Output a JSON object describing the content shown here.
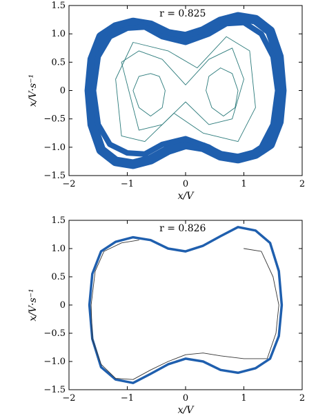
{
  "chart_data": [
    {
      "type": "line",
      "annotation": "r = 0.825",
      "xlabel": "x/V",
      "ylabel": "x/V·s⁻¹",
      "xlim": [
        -2,
        2
      ],
      "ylim": [
        -1.5,
        1.5
      ],
      "xticks": [
        "−2",
        "−1",
        "0",
        "1",
        "2"
      ],
      "yticks": [
        "1.5",
        "1.0",
        "0.5",
        "0",
        "−0.5",
        "−1.0",
        "−1.5"
      ],
      "series": [
        {
          "color": "#1f5fae",
          "x": [
            -1.65,
            -1.6,
            -1.45,
            -1.2,
            -0.9,
            -0.6,
            -0.3,
            0,
            0.3,
            0.6,
            0.9,
            1.2,
            1.45,
            1.6,
            1.65,
            1.6,
            1.45,
            1.2,
            0.9,
            0.6,
            0.3,
            0,
            -0.3,
            -0.6,
            -0.9,
            -1.2,
            -1.45,
            -1.6,
            -1.65
          ],
          "y": [
            0,
            0.55,
            0.95,
            1.12,
            1.2,
            1.15,
            1.0,
            0.95,
            1.05,
            1.22,
            1.3,
            1.25,
            1.05,
            0.6,
            0,
            -0.55,
            -0.95,
            -1.12,
            -1.2,
            -1.15,
            -1.0,
            -0.95,
            -1.05,
            -1.22,
            -1.3,
            -1.25,
            -1.05,
            -0.6,
            0
          ]
        },
        {
          "color": "#1f5fae",
          "x": [
            -1.58,
            -1.5,
            -1.3,
            -1.0,
            -0.7,
            -0.4,
            0,
            0.4,
            0.7,
            1.0,
            1.3,
            1.5,
            1.58,
            1.5,
            1.3,
            1.0,
            0.7,
            0.4,
            0,
            -0.4,
            -0.7,
            -1.0,
            -1.3,
            -1.5,
            -1.58
          ],
          "y": [
            0,
            0.6,
            0.95,
            1.1,
            1.12,
            0.95,
            0.85,
            1.0,
            1.18,
            1.2,
            1.0,
            0.6,
            0,
            -0.6,
            -1.0,
            -1.2,
            -1.18,
            -1.0,
            -0.85,
            -0.95,
            -1.12,
            -1.1,
            -0.95,
            -0.6,
            0
          ]
        },
        {
          "color": "#2a7a7a",
          "x": [
            -0.6,
            -0.8,
            -0.9,
            -0.8,
            -0.6,
            -0.4,
            -0.35,
            -0.45,
            -0.6
          ],
          "y": [
            0.3,
            0.25,
            0,
            -0.3,
            -0.45,
            -0.3,
            0,
            0.25,
            0.3
          ]
        },
        {
          "color": "#2a7a7a",
          "x": [
            0.6,
            0.4,
            0.35,
            0.45,
            0.65,
            0.85,
            0.9,
            0.8,
            0.6
          ],
          "y": [
            0.4,
            0.25,
            0,
            -0.3,
            -0.45,
            -0.3,
            0,
            0.3,
            0.4
          ]
        },
        {
          "color": "#2a7a7a",
          "x": [
            -1.1,
            -0.8,
            -0.4,
            0,
            0.4,
            0.8,
            1.0,
            0.8,
            0.4,
            0,
            -0.4,
            -0.8,
            -1.1
          ],
          "y": [
            0.5,
            0.7,
            0.55,
            0.1,
            0.55,
            0.75,
            0.2,
            -0.5,
            -0.6,
            -0.2,
            -0.6,
            -0.7,
            0.5
          ]
        },
        {
          "color": "#2a7a7a",
          "x": [
            -1.2,
            -0.9,
            -0.3,
            0.2,
            0.7,
            1.1,
            1.2,
            0.9,
            0.3,
            -0.2,
            -0.7,
            -1.1,
            -1.2
          ],
          "y": [
            0.2,
            0.85,
            0.7,
            0.4,
            0.95,
            0.7,
            -0.3,
            -0.9,
            -0.75,
            -0.4,
            -0.9,
            -0.8,
            0.2
          ]
        }
      ]
    },
    {
      "type": "line",
      "annotation": "r = 0.826",
      "xlabel": "x/V",
      "ylabel": "x/V·s⁻¹",
      "xlim": [
        -2,
        2
      ],
      "ylim": [
        -1.5,
        1.5
      ],
      "xticks": [
        "−2",
        "−1",
        "0",
        "1",
        "2"
      ],
      "yticks": [
        "1.5",
        "1.0",
        "0.5",
        "0",
        "−0.5",
        "−1.0",
        "−1.5"
      ],
      "series": [
        {
          "color": "#1f5fae",
          "x": [
            -1.65,
            -1.6,
            -1.45,
            -1.2,
            -0.9,
            -0.6,
            -0.3,
            0,
            0.3,
            0.6,
            0.9,
            1.2,
            1.45,
            1.6,
            1.65,
            1.6,
            1.45,
            1.2,
            0.9,
            0.6,
            0.3,
            0,
            -0.3,
            -0.6,
            -0.9,
            -1.2,
            -1.45,
            -1.6,
            -1.65
          ],
          "y": [
            0,
            0.55,
            0.95,
            1.12,
            1.2,
            1.15,
            1.0,
            0.95,
            1.05,
            1.22,
            1.38,
            1.32,
            1.1,
            0.6,
            0,
            -0.55,
            -0.95,
            -1.12,
            -1.2,
            -1.15,
            -1.0,
            -0.95,
            -1.05,
            -1.22,
            -1.38,
            -1.32,
            -1.1,
            -0.6,
            0
          ]
        },
        {
          "color": "#333333",
          "x": [
            1.0,
            1.3,
            1.5,
            1.6,
            1.55,
            1.4,
            1.0,
            0.6,
            0.3,
            0,
            -0.3,
            -0.6,
            -0.9,
            -1.2,
            -1.45,
            -1.6,
            -1.62,
            -1.55,
            -1.4,
            -1.1,
            -0.8
          ],
          "y": [
            1.0,
            0.95,
            0.5,
            0,
            -0.5,
            -0.95,
            -0.95,
            -0.9,
            -0.85,
            -0.88,
            -1.0,
            -1.15,
            -1.32,
            -1.3,
            -1.05,
            -0.6,
            0,
            0.6,
            0.95,
            1.1,
            1.15
          ]
        }
      ]
    }
  ]
}
